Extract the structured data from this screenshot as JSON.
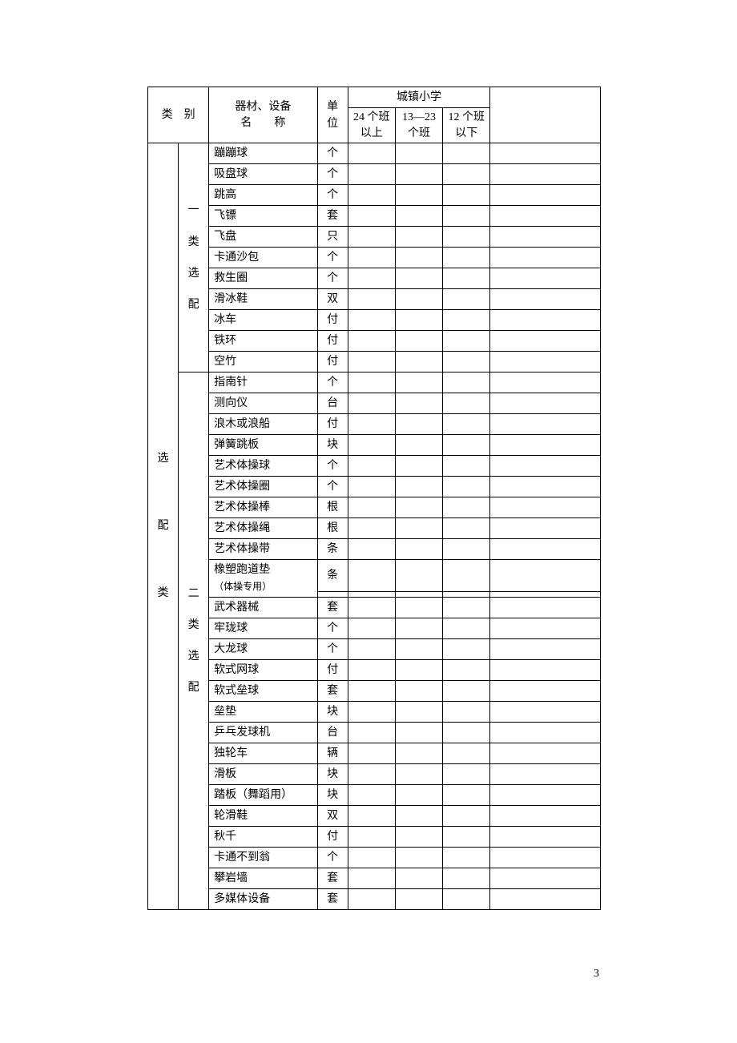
{
  "page_number": "3",
  "col_widths": {
    "cat1": 36,
    "cat2": 36,
    "name": 128,
    "unit": 36,
    "c24": 56,
    "c13": 56,
    "c12": 56,
    "last": 130
  },
  "header": {
    "category": "类　别",
    "name_line1": "器材、设备",
    "name_line2": "名　　称",
    "unit": "单位",
    "school_group": "城镇小学",
    "col_24": "24 个班 以上",
    "col_13_23": "13—23 个班",
    "col_12": "12 个班 以下"
  },
  "category_main_top": "选",
  "category_main_mid": "配",
  "category_main_bot": "类",
  "subcategory1": [
    "一",
    "类",
    "选",
    "配"
  ],
  "subcategory2": [
    "二",
    "类",
    "选",
    "配"
  ],
  "rows_cat1": [
    {
      "name": "蹦蹦球",
      "unit": "个"
    },
    {
      "name": "吸盘球",
      "unit": "个"
    },
    {
      "name": "跳高",
      "unit": "个"
    },
    {
      "name": "飞镖",
      "unit": "套"
    },
    {
      "name": "飞盘",
      "unit": "只"
    },
    {
      "name": "卡通沙包",
      "unit": "个"
    },
    {
      "name": "救生圈",
      "unit": "个"
    },
    {
      "name": "滑冰鞋",
      "unit": "双"
    },
    {
      "name": "冰车",
      "unit": "付"
    },
    {
      "name": "铁环",
      "unit": "付"
    },
    {
      "name": "空竹",
      "unit": "付"
    }
  ],
  "rows_cat2": [
    {
      "name": "指南针",
      "unit": "个"
    },
    {
      "name": "测向仪",
      "unit": "台"
    },
    {
      "name": "浪木或浪船",
      "unit": "付"
    },
    {
      "name": "弹簧跳板",
      "unit": "块"
    },
    {
      "name": "艺术体操球",
      "unit": "个"
    },
    {
      "name": "艺术体操圈",
      "unit": "个"
    },
    {
      "name": "艺术体操棒",
      "unit": "根"
    },
    {
      "name": "艺术体操绳",
      "unit": "根"
    },
    {
      "name": "艺术体操带",
      "unit": "条"
    },
    {
      "name": "橡塑跑道垫",
      "unit": "条",
      "note": "（体操专用）"
    },
    {
      "name": "武术器械",
      "unit": "套"
    },
    {
      "name": "牢珑球",
      "unit": "个"
    },
    {
      "name": "大龙球",
      "unit": "个"
    },
    {
      "name": "软式网球",
      "unit": "付"
    },
    {
      "name": "软式垒球",
      "unit": "套"
    },
    {
      "name": "垒垫",
      "unit": "块"
    },
    {
      "name": "乒乓发球机",
      "unit": "台"
    },
    {
      "name": "独轮车",
      "unit": "辆"
    },
    {
      "name": "滑板",
      "unit": "块"
    },
    {
      "name": "踏板（舞蹈用）",
      "unit": "块"
    },
    {
      "name": "轮滑鞋",
      "unit": "双"
    },
    {
      "name": "秋千",
      "unit": "付"
    },
    {
      "name": "卡通不到翁",
      "unit": "个"
    },
    {
      "name": "攀岩墙",
      "unit": "套"
    },
    {
      "name": "多媒体设备",
      "unit": "套"
    }
  ]
}
